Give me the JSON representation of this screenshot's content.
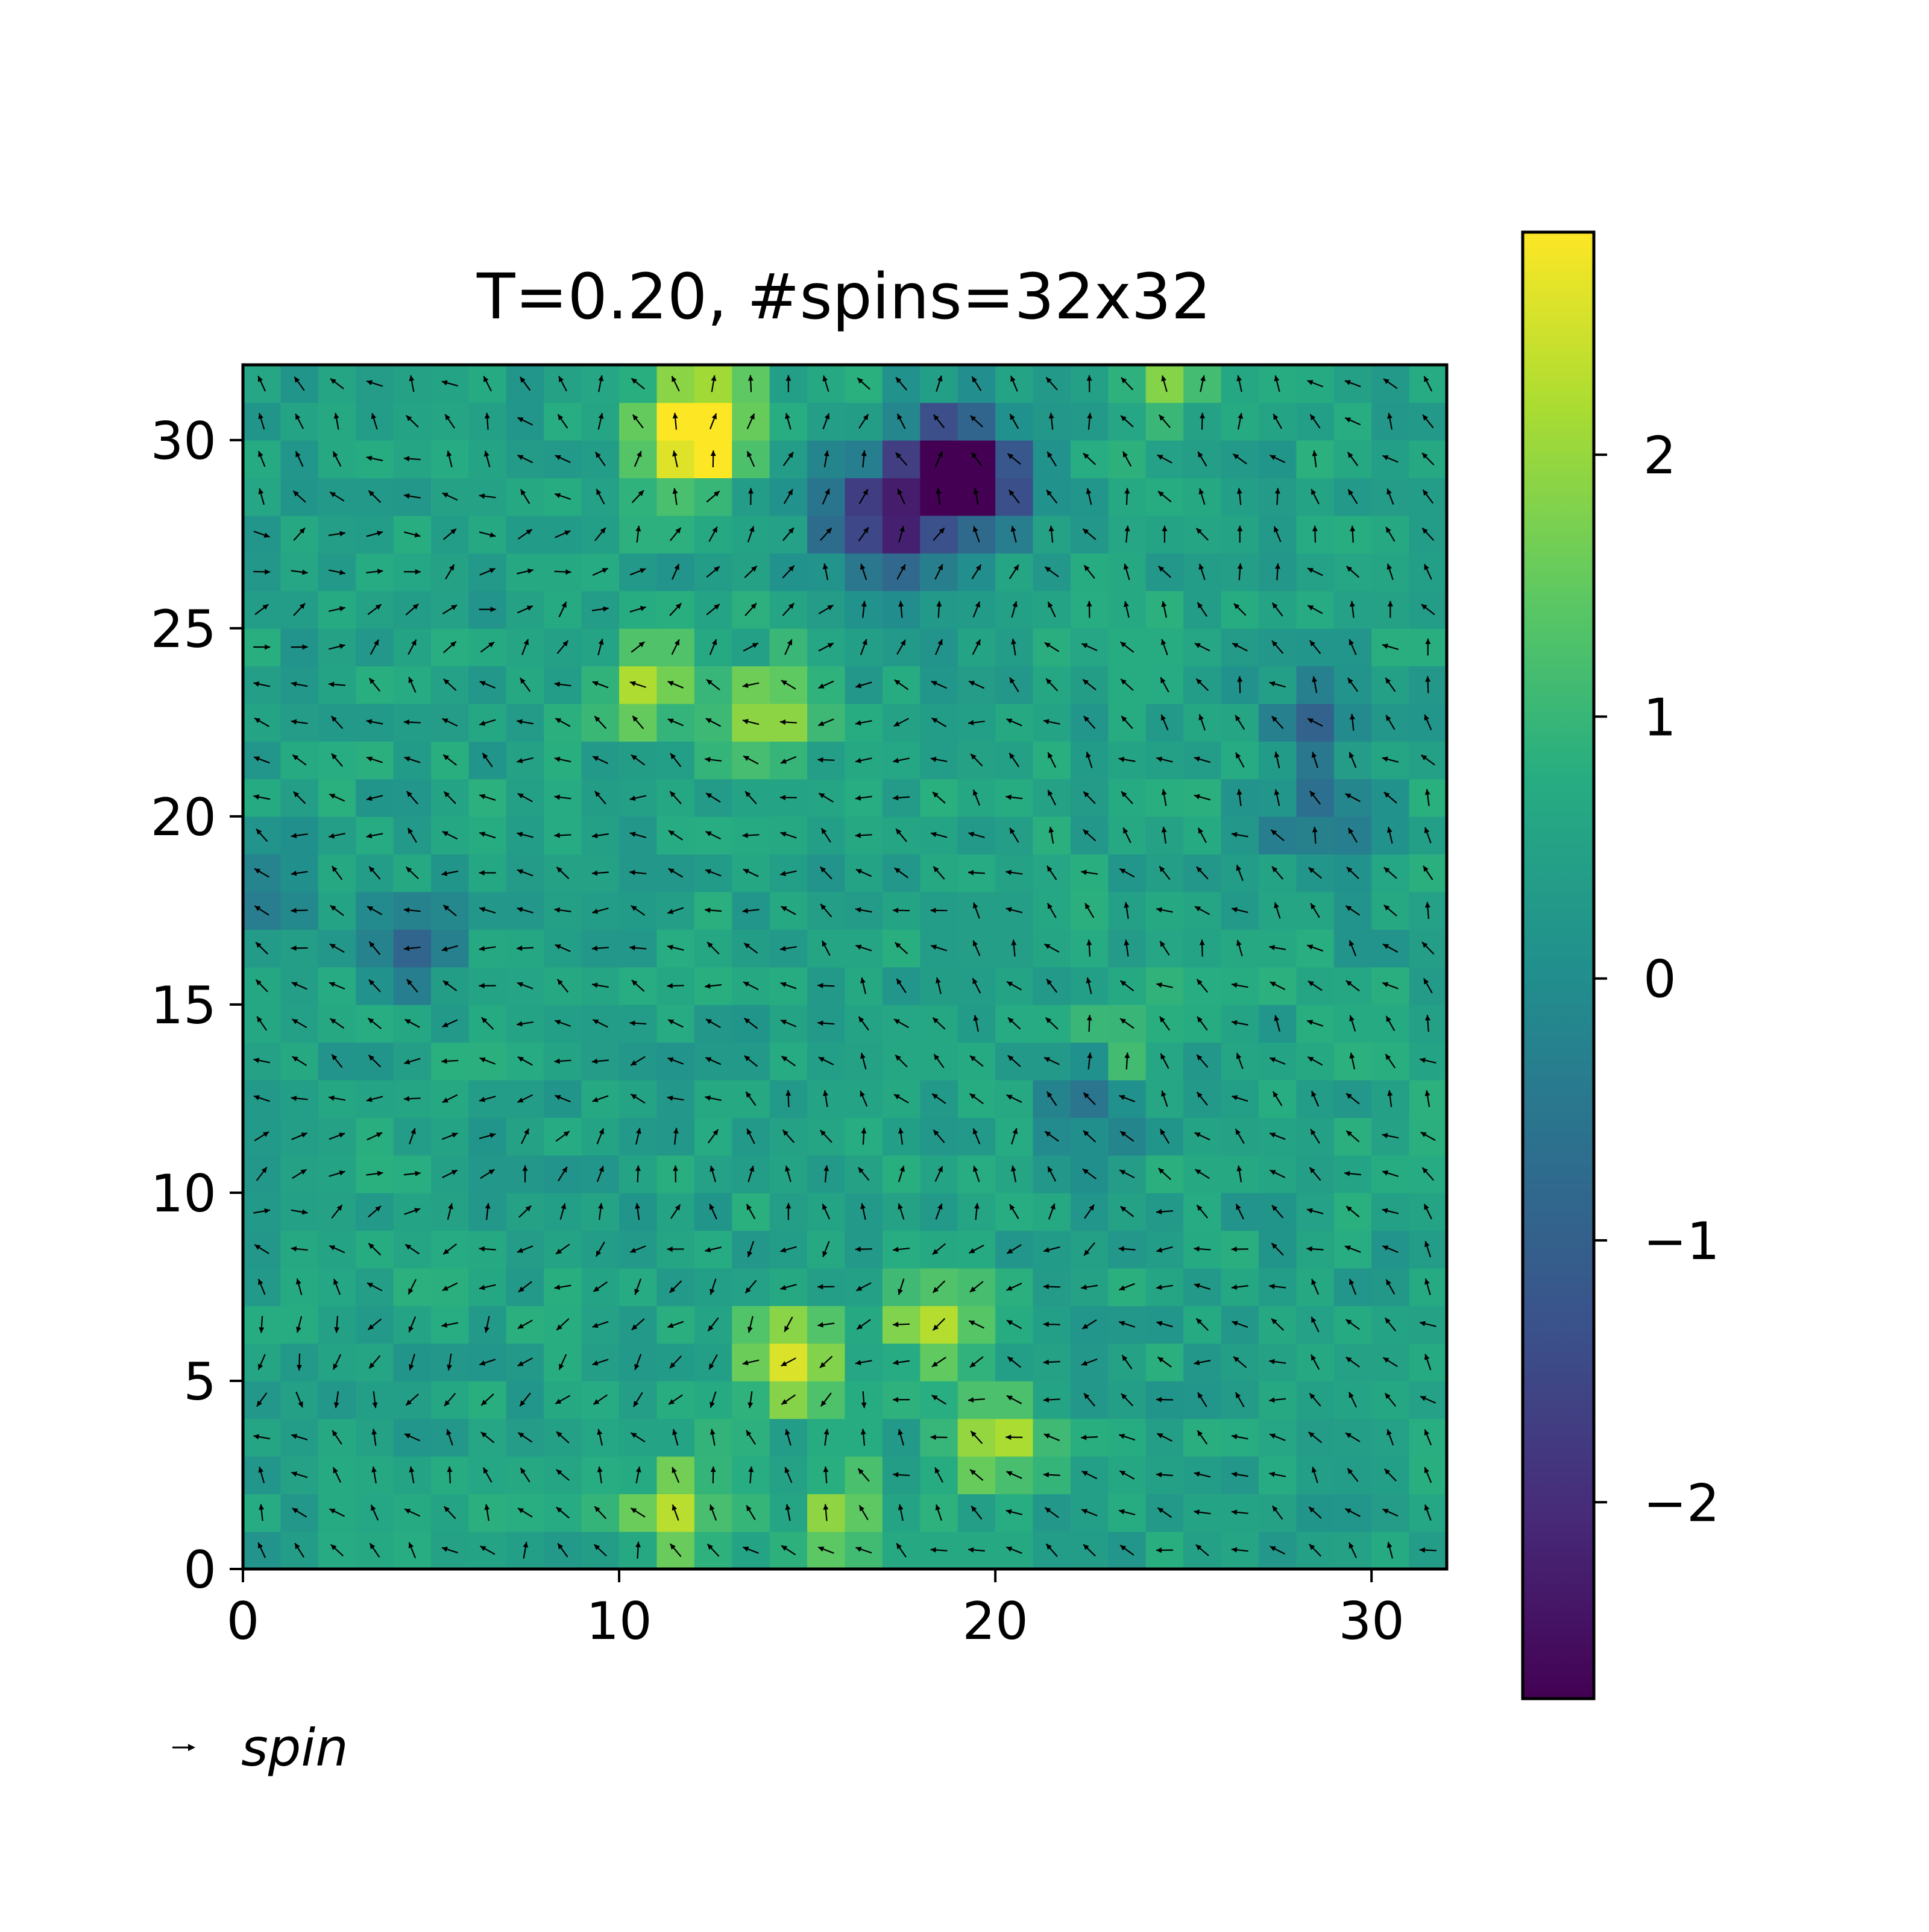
{
  "chart_data": {
    "type": "heatmap",
    "title": "T=0.20, #spins=32x32",
    "xlabel": "",
    "ylabel": "",
    "xlim": [
      0,
      32
    ],
    "ylim": [
      0,
      32
    ],
    "xticks": [
      0,
      10,
      20,
      30
    ],
    "yticks": [
      0,
      5,
      10,
      15,
      20,
      25,
      30
    ],
    "grid_size": [
      32,
      32
    ],
    "colormap": "viridis",
    "colorbar": {
      "vmin": -2.75,
      "vmax": 2.85,
      "ticks": [
        2,
        1,
        0,
        -1,
        -2
      ]
    },
    "quiver_key_label": "spin",
    "legend_placement": "bottom-left",
    "background_level": 0.5,
    "hotspots": [
      {
        "x": 12.5,
        "y": 30.5,
        "value": 2.8
      },
      {
        "x": 11.5,
        "y": 30,
        "value": 2.4
      },
      {
        "x": 11,
        "y": 23.5,
        "value": 2.1
      },
      {
        "x": 14,
        "y": 22.8,
        "value": 2.2
      },
      {
        "x": 14.5,
        "y": 5.5,
        "value": 2.5
      },
      {
        "x": 18.5,
        "y": 6.5,
        "value": 2.3
      },
      {
        "x": 20,
        "y": 3.5,
        "value": 2.1
      },
      {
        "x": 11.5,
        "y": 1.5,
        "value": 2.2
      },
      {
        "x": 16,
        "y": 1.5,
        "value": 1.9
      },
      {
        "x": 24.5,
        "y": 31.5,
        "value": 1.6
      },
      {
        "x": 23.5,
        "y": 14,
        "value": 1.4
      },
      {
        "x": 19.5,
        "y": 28.8,
        "value": -2.75
      },
      {
        "x": 18.5,
        "y": 29.5,
        "value": -2.2
      },
      {
        "x": 17.5,
        "y": 27.5,
        "value": -1.6
      },
      {
        "x": 16,
        "y": 28,
        "value": -1.1
      },
      {
        "x": 22.5,
        "y": 12.5,
        "value": -0.8
      },
      {
        "x": 28.5,
        "y": 20,
        "value": -0.6
      },
      {
        "x": 28.5,
        "y": 22.5,
        "value": -0.6
      },
      {
        "x": 4.5,
        "y": 16.5,
        "value": -0.7
      },
      {
        "x": 0.5,
        "y": 18,
        "value": -0.6
      }
    ],
    "vortices": [
      {
        "x": 9.5,
        "y": 28.5,
        "sign": 1
      },
      {
        "x": 20.5,
        "y": 24.5,
        "sign": -1
      },
      {
        "x": 17.5,
        "y": 4.5,
        "sign": 1
      },
      {
        "x": 23.5,
        "y": 9.5,
        "sign": -1
      },
      {
        "x": 13.5,
        "y": 12.5,
        "sign": 1
      },
      {
        "x": 4.5,
        "y": 7.5,
        "sign": -1
      }
    ]
  }
}
